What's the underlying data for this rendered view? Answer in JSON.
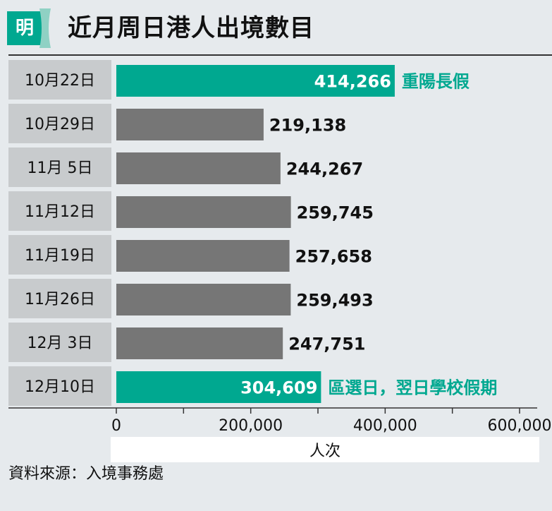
{
  "header": {
    "logo_text": "明",
    "title": "近月周日港人出境數目"
  },
  "colors": {
    "highlight": "#00a890",
    "normal": "#767676",
    "label_bg": "#c8cbcd",
    "background": "#e6eaed"
  },
  "chart_data": {
    "type": "bar",
    "orientation": "horizontal",
    "title": "近月周日港人出境數目",
    "categories": [
      "10月22日",
      "10月29日",
      "11月 5日",
      "11月12日",
      "11月19日",
      "11月26日",
      "12月 3日",
      "12月10日"
    ],
    "values": [
      414266,
      219138,
      244267,
      259745,
      257658,
      259493,
      247751,
      304609
    ],
    "value_labels": [
      "414,266",
      "219,138",
      "244,267",
      "259,745",
      "257,658",
      "259,493",
      "247,751",
      "304,609"
    ],
    "highlighted": [
      true,
      false,
      false,
      false,
      false,
      false,
      false,
      true
    ],
    "annotations": [
      "重陽長假",
      "",
      "",
      "",
      "",
      "",
      "",
      "區選日，翌日學校假期"
    ],
    "xlim": [
      0,
      600000
    ],
    "xticks": [
      0,
      200000,
      400000,
      600000
    ],
    "xtick_labels": [
      "0",
      "200,000",
      "400,000",
      "600,000"
    ],
    "xlabel": "人次",
    "grid": false
  },
  "footer": {
    "source": "資料來源：入境事務處"
  }
}
